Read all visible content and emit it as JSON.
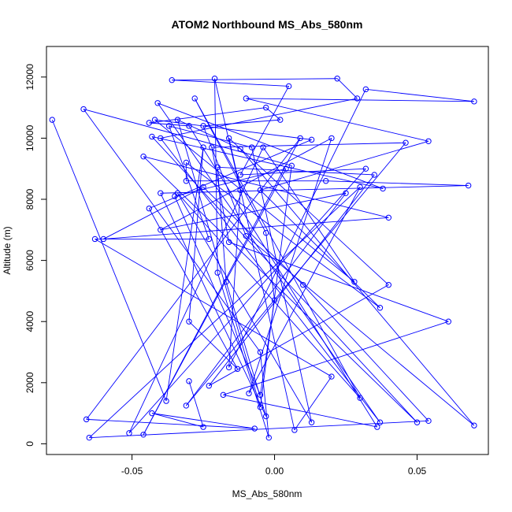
{
  "chart_data": {
    "type": "line",
    "title": "ATOM2 Northbound MS_Abs_580nm",
    "xlabel": "MS_Abs_580nm",
    "ylabel": "Altitude (m)",
    "xlim": [
      -0.08,
      0.075
    ],
    "ylim": [
      -350,
      13000
    ],
    "xticks": [
      -0.05,
      0.0,
      0.05
    ],
    "xtick_labels": [
      "-0.05",
      "0.00",
      "0.05"
    ],
    "yticks": [
      0,
      2000,
      4000,
      6000,
      8000,
      10000,
      12000
    ],
    "ytick_labels": [
      "0",
      "2000",
      "4000",
      "6000",
      "8000",
      "10000",
      "12000"
    ],
    "grid": false,
    "markers": "open-circle",
    "series": [
      {
        "color": "#0000ff",
        "points": [
          [
            -0.078,
            10600
          ],
          [
            -0.038,
            1400
          ],
          [
            -0.025,
            9700
          ],
          [
            -0.03,
            4000
          ],
          [
            -0.013,
            2450
          ],
          [
            -0.044,
            7700
          ],
          [
            0.013,
            9950
          ],
          [
            -0.042,
            10600
          ],
          [
            0.028,
            5300
          ],
          [
            -0.004,
            9700
          ],
          [
            -0.051,
            350
          ],
          [
            0.032,
            9000
          ],
          [
            -0.012,
            8800
          ],
          [
            0.005,
            11700
          ],
          [
            -0.036,
            11900
          ],
          [
            0.022,
            11950
          ],
          [
            0.029,
            11300
          ],
          [
            -0.04,
            10000
          ],
          [
            0.037,
            700
          ],
          [
            -0.041,
            11150
          ],
          [
            0.038,
            8350
          ],
          [
            -0.043,
            10050
          ],
          [
            0.05,
            700
          ],
          [
            -0.046,
            9400
          ],
          [
            0.04,
            7400
          ],
          [
            -0.06,
            6700
          ],
          [
            -0.025,
            8400
          ],
          [
            0.01,
            5200
          ],
          [
            0.054,
            750
          ],
          [
            -0.065,
            200
          ],
          [
            0.03,
            8400
          ],
          [
            -0.009,
            1650
          ],
          [
            0.02,
            10000
          ],
          [
            -0.04,
            7000
          ],
          [
            0.025,
            8200
          ],
          [
            -0.031,
            1250
          ],
          [
            0.046,
            9850
          ],
          [
            -0.022,
            9700
          ],
          [
            -0.016,
            6600
          ],
          [
            0.061,
            4000
          ],
          [
            -0.018,
            1600
          ],
          [
            0.036,
            550
          ],
          [
            -0.03,
            10400
          ],
          [
            -0.044,
            10500
          ],
          [
            -0.003,
            11000
          ],
          [
            0.002,
            10600
          ],
          [
            -0.025,
            10400
          ],
          [
            -0.01,
            6800
          ],
          [
            0.07,
            600
          ],
          [
            -0.012,
            9650
          ],
          [
            -0.034,
            10600
          ],
          [
            -0.005,
            1200
          ],
          [
            0.006,
            9100
          ],
          [
            -0.067,
            10950
          ],
          [
            -0.005,
            3000
          ],
          [
            -0.002,
            200
          ],
          [
            -0.02,
            5600
          ],
          [
            -0.021,
            11950
          ],
          [
            -0.012,
            8300
          ],
          [
            -0.016,
            2500
          ],
          [
            0.032,
            11600
          ],
          [
            0.07,
            11200
          ],
          [
            -0.01,
            11300
          ],
          [
            0.054,
            9900
          ],
          [
            -0.005,
            8300
          ],
          [
            0.037,
            4450
          ],
          [
            -0.031,
            9200
          ],
          [
            -0.031,
            8600
          ],
          [
            0.018,
            8600
          ],
          [
            0.068,
            8450
          ],
          [
            -0.04,
            8200
          ],
          [
            -0.003,
            900
          ],
          [
            -0.017,
            5300
          ],
          [
            -0.02,
            9050
          ],
          [
            0.035,
            8800
          ],
          [
            -0.023,
            1900
          ],
          [
            0.04,
            5200
          ],
          [
            -0.016,
            10000
          ],
          [
            0.007,
            450
          ],
          [
            0.02,
            2200
          ],
          [
            -0.063,
            6700
          ],
          [
            -0.023,
            6700
          ],
          [
            -0.037,
            10400
          ],
          [
            -0.008,
            9700
          ],
          [
            0.013,
            700
          ],
          [
            -0.034,
            8200
          ],
          [
            0.03,
            1500
          ],
          [
            -0.028,
            11300
          ],
          [
            -0.003,
            6900
          ],
          [
            0.0,
            4700
          ],
          [
            -0.005,
            1600
          ],
          [
            -0.035,
            8100
          ],
          [
            0.004,
            9000
          ],
          [
            -0.046,
            300
          ],
          [
            0.009,
            10000
          ],
          [
            -0.066,
            800
          ],
          [
            -0.007,
            500
          ],
          [
            -0.043,
            1000
          ],
          [
            -0.025,
            550
          ],
          [
            -0.03,
            2050
          ]
        ]
      }
    ]
  }
}
